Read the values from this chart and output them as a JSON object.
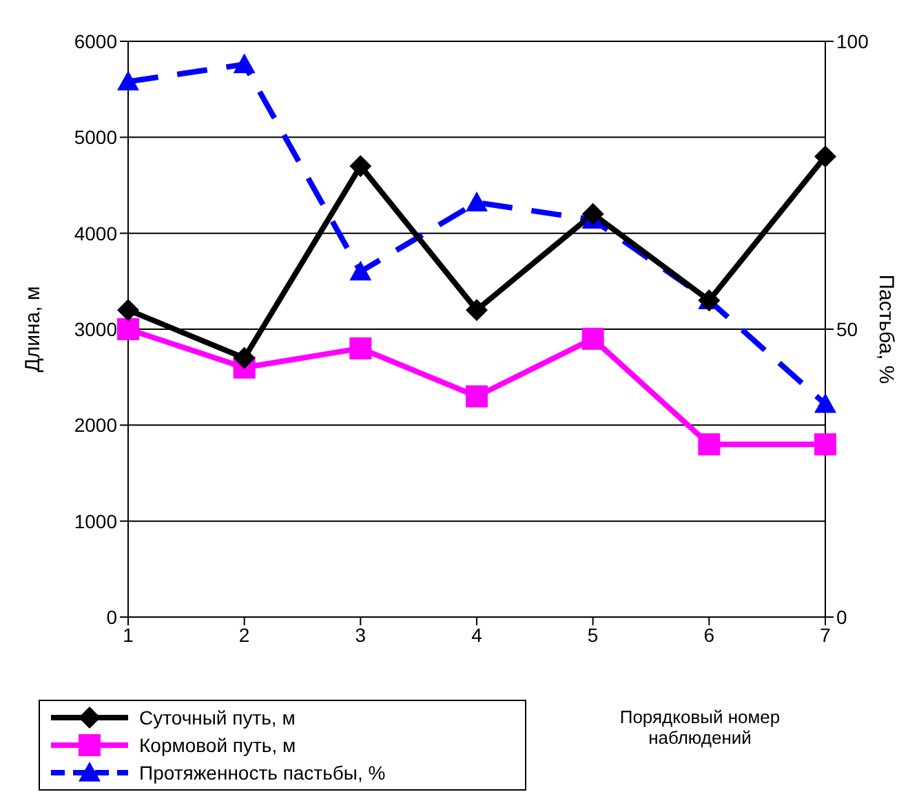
{
  "chart_data": {
    "type": "line",
    "xlabel": "Порядковый номер наблюдений",
    "ylabel": "Длина, м",
    "y2label": "Пастьба, %",
    "categories": [
      "1",
      "2",
      "3",
      "4",
      "5",
      "6",
      "7"
    ],
    "series": [
      {
        "name": "Суточный путь, м",
        "color": "#000000",
        "marker": "diamond",
        "line_style": "solid",
        "values": [
          3200,
          2700,
          4700,
          3200,
          4200,
          3300,
          4800
        ]
      },
      {
        "name": "Кормовой путь, м",
        "color": "#ff00ff",
        "marker": "square",
        "line_style": "solid",
        "values": [
          3000,
          2600,
          2800,
          2300,
          2900,
          1800,
          1800
        ]
      },
      {
        "name": "Протяженность пастьбы, %",
        "color": "#0000ff",
        "marker": "triangle",
        "line_style": "dashed",
        "axis": "y2",
        "values": [
          93,
          96,
          60,
          72,
          69,
          55,
          37
        ]
      }
    ],
    "ylim": [
      0,
      6000
    ],
    "yticks": [
      0,
      1000,
      2000,
      3000,
      4000,
      5000,
      6000
    ],
    "y2lim": [
      0,
      100
    ],
    "y2ticks": [
      0,
      50,
      100
    ],
    "grid": "y",
    "legend": "bottom left"
  }
}
